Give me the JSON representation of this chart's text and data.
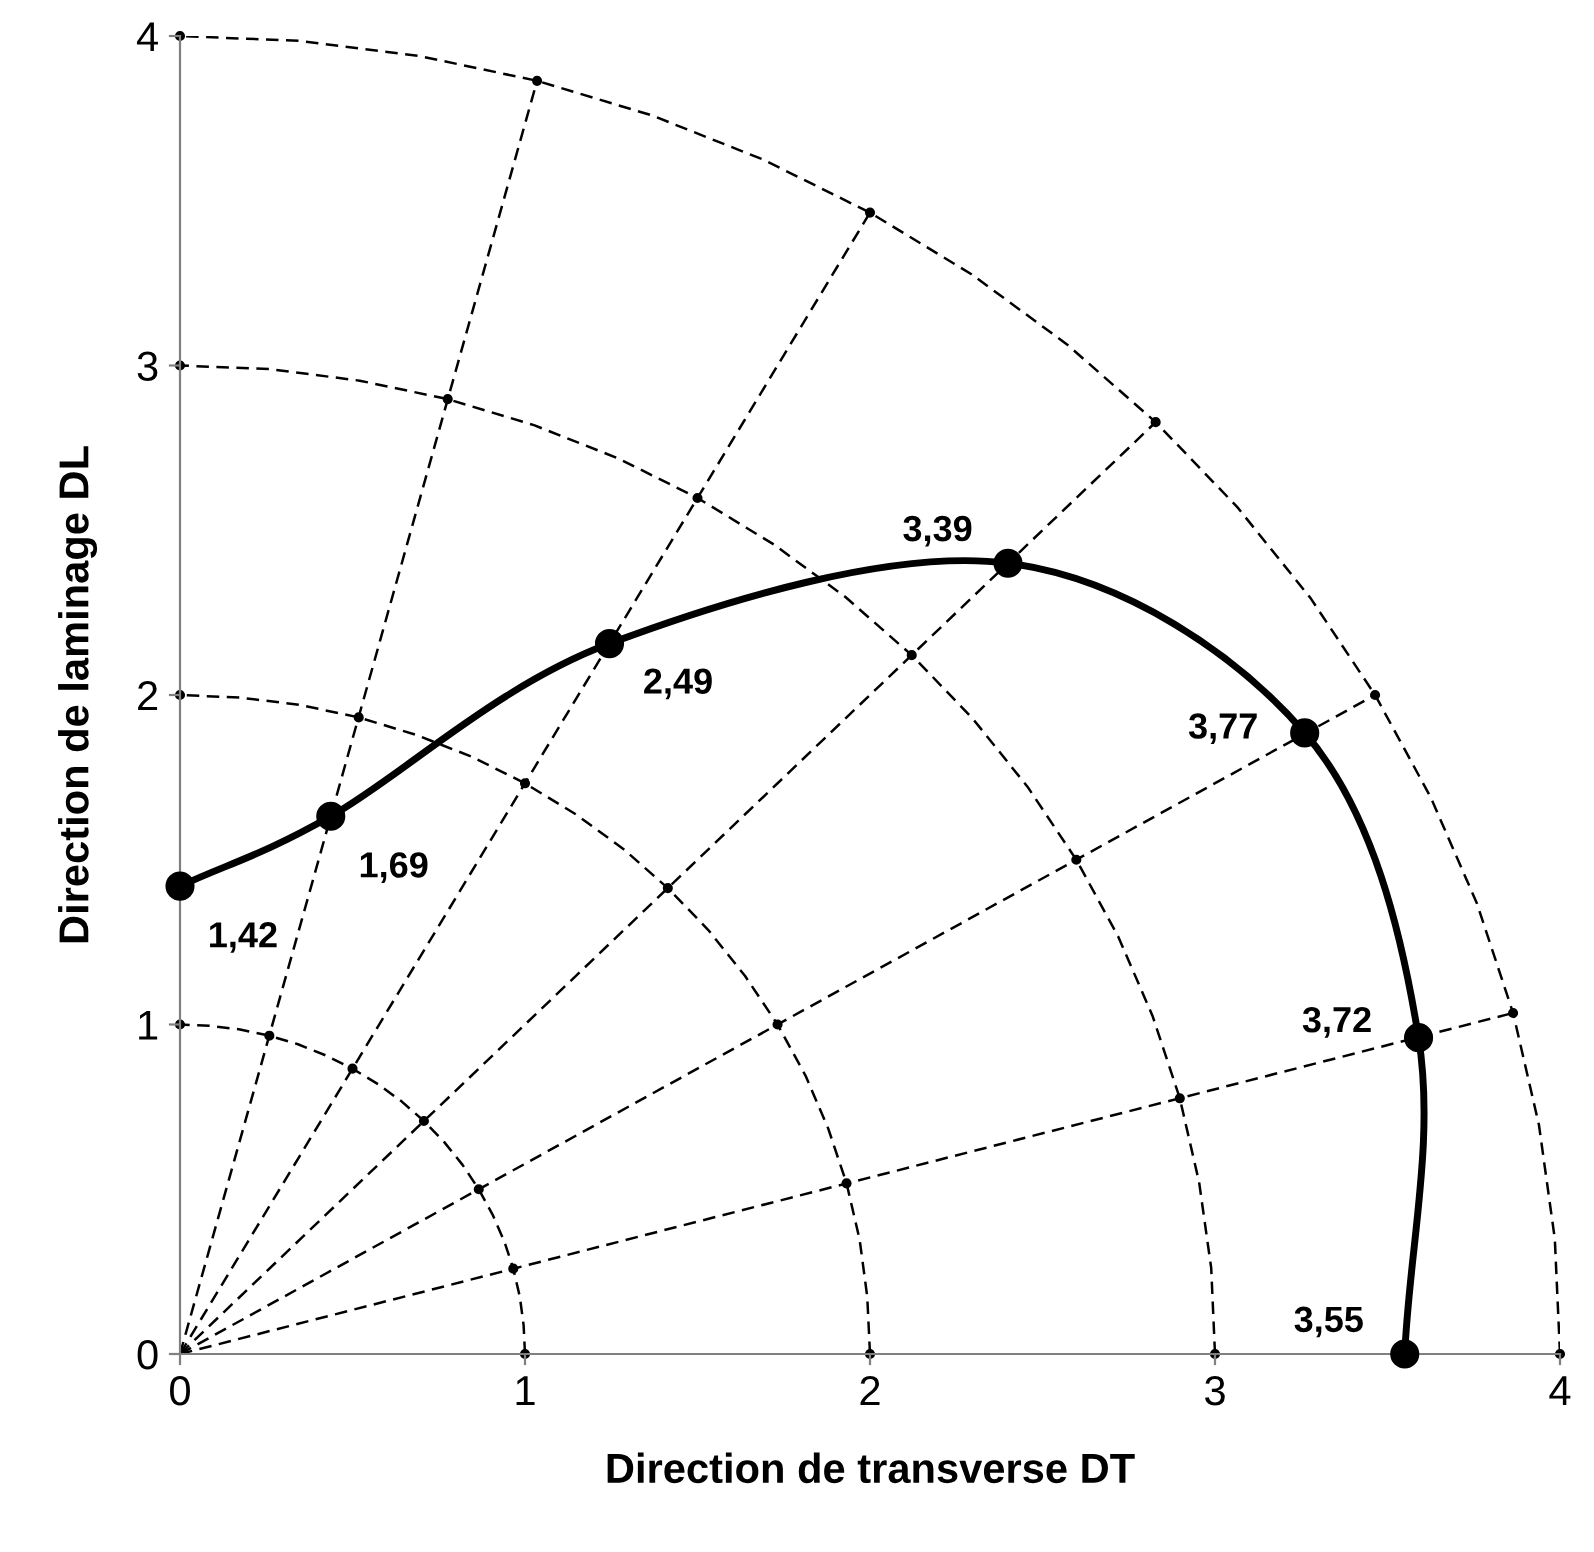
{
  "chart_data": {
    "type": "line",
    "xlabel": "Direction de transverse DT",
    "ylabel": "Direction de laminage DL",
    "xlim": [
      0,
      4
    ],
    "ylim": [
      0,
      4
    ],
    "xticks": [
      0,
      1,
      2,
      3,
      4
    ],
    "yticks": [
      0,
      1,
      2,
      3,
      4
    ],
    "series": [
      {
        "type": "line",
        "line_style": "dashed",
        "marker": "none",
        "color": "#000000",
        "x": [
          1,
          0.996,
          0.985,
          0.966,
          0.94,
          0.906,
          0.866,
          0.819,
          0.766,
          0.707,
          0.643,
          0.574,
          0.5,
          0.423,
          0.342,
          0.259,
          0.174,
          0.087,
          0
        ],
        "values": [
          0,
          0.087,
          0.174,
          0.259,
          0.342,
          0.423,
          0.5,
          0.574,
          0.643,
          0.707,
          0.766,
          0.819,
          0.866,
          0.906,
          0.94,
          0.966,
          0.985,
          0.996,
          1
        ]
      },
      {
        "type": "line",
        "line_style": "dashed",
        "marker": "none",
        "color": "#000000",
        "x": [
          2,
          1.992,
          1.97,
          1.932,
          1.879,
          1.813,
          1.732,
          1.638,
          1.532,
          1.414,
          1.286,
          1.147,
          1,
          0.845,
          0.684,
          0.518,
          0.347,
          0.174,
          0
        ],
        "values": [
          0,
          0.174,
          0.347,
          0.518,
          0.684,
          0.845,
          1,
          1.147,
          1.286,
          1.414,
          1.532,
          1.638,
          1.732,
          1.813,
          1.879,
          1.932,
          1.97,
          1.992,
          2
        ]
      },
      {
        "type": "line",
        "line_style": "dashed",
        "marker": "none",
        "color": "#000000",
        "x": [
          3,
          2.989,
          2.954,
          2.898,
          2.819,
          2.719,
          2.598,
          2.457,
          2.298,
          2.121,
          1.928,
          1.721,
          1.5,
          1.268,
          1.026,
          0.776,
          0.521,
          0.261,
          0
        ],
        "values": [
          0,
          0.261,
          0.521,
          0.776,
          1.026,
          1.268,
          1.5,
          1.721,
          1.928,
          2.121,
          2.298,
          2.457,
          2.598,
          2.719,
          2.819,
          2.898,
          2.954,
          2.989,
          3
        ]
      },
      {
        "type": "line",
        "line_style": "dashed",
        "marker": "none",
        "color": "#000000",
        "x": [
          4,
          3.985,
          3.939,
          3.864,
          3.759,
          3.625,
          3.464,
          3.277,
          3.064,
          2.828,
          2.571,
          2.294,
          2,
          1.69,
          1.368,
          1.035,
          0.695,
          0.349,
          0
        ],
        "values": [
          0,
          0.349,
          0.695,
          1.035,
          1.368,
          1.69,
          2,
          2.294,
          2.571,
          2.828,
          3.064,
          3.277,
          3.464,
          3.625,
          3.759,
          3.864,
          3.939,
          3.985,
          4
        ]
      },
      {
        "type": "line",
        "line_style": "dashed",
        "marker": "none",
        "color": "#000000",
        "x": [
          0,
          3.864
        ],
        "values": [
          0,
          1.035
        ]
      },
      {
        "type": "line",
        "line_style": "dashed",
        "marker": "none",
        "color": "#000000",
        "x": [
          0,
          3.464
        ],
        "values": [
          0,
          2
        ]
      },
      {
        "type": "line",
        "line_style": "dashed",
        "marker": "none",
        "color": "#000000",
        "x": [
          0,
          2.828
        ],
        "values": [
          0,
          2.828
        ]
      },
      {
        "type": "line",
        "line_style": "dashed",
        "marker": "none",
        "color": "#000000",
        "x": [
          0,
          2
        ],
        "values": [
          0,
          3.464
        ]
      },
      {
        "type": "line",
        "line_style": "dashed",
        "marker": "none",
        "color": "#000000",
        "x": [
          0,
          1.035
        ],
        "values": [
          0,
          3.864
        ]
      },
      {
        "type": "scatter",
        "marker": "circle",
        "color": "#000000",
        "x": [
          1,
          0.966,
          0.866,
          0.707,
          0.5,
          0.259,
          0,
          2,
          1.932,
          1.732,
          1.414,
          1,
          0.518,
          0,
          3,
          2.898,
          2.598,
          2.121,
          1.5,
          0.776,
          0,
          4,
          3.864,
          3.464,
          2.828,
          2,
          1.035,
          0
        ],
        "values": [
          0,
          0.259,
          0.5,
          0.707,
          0.866,
          0.966,
          1,
          0,
          0.518,
          1,
          1.414,
          1.732,
          1.932,
          2,
          0,
          0.776,
          1.5,
          2.121,
          2.598,
          2.898,
          3,
          0,
          1.035,
          2,
          2.828,
          3.464,
          3.864,
          4
        ]
      },
      {
        "line_style": "solid",
        "marker": "circle",
        "color": "#000000",
        "x": [
          0,
          0.437,
          1.245,
          2.4,
          3.26,
          3.59,
          3.55
        ],
        "values": [
          1.42,
          1.632,
          2.156,
          2.4,
          1.885,
          0.96,
          0
        ]
      }
    ],
    "annotations": [
      {
        "text": "1,42",
        "x": 0,
        "y": 1.42
      },
      {
        "text": "1,69",
        "x": 0.437,
        "y": 1.632
      },
      {
        "text": "2,49",
        "x": 1.245,
        "y": 2.156
      },
      {
        "text": "3,39",
        "x": 2.4,
        "y": 2.4
      },
      {
        "text": "3,77",
        "x": 3.26,
        "y": 1.885
      },
      {
        "text": "3,72",
        "x": 3.59,
        "y": 0.96
      },
      {
        "text": "3,55",
        "x": 3.55,
        "y": 0
      }
    ]
  }
}
